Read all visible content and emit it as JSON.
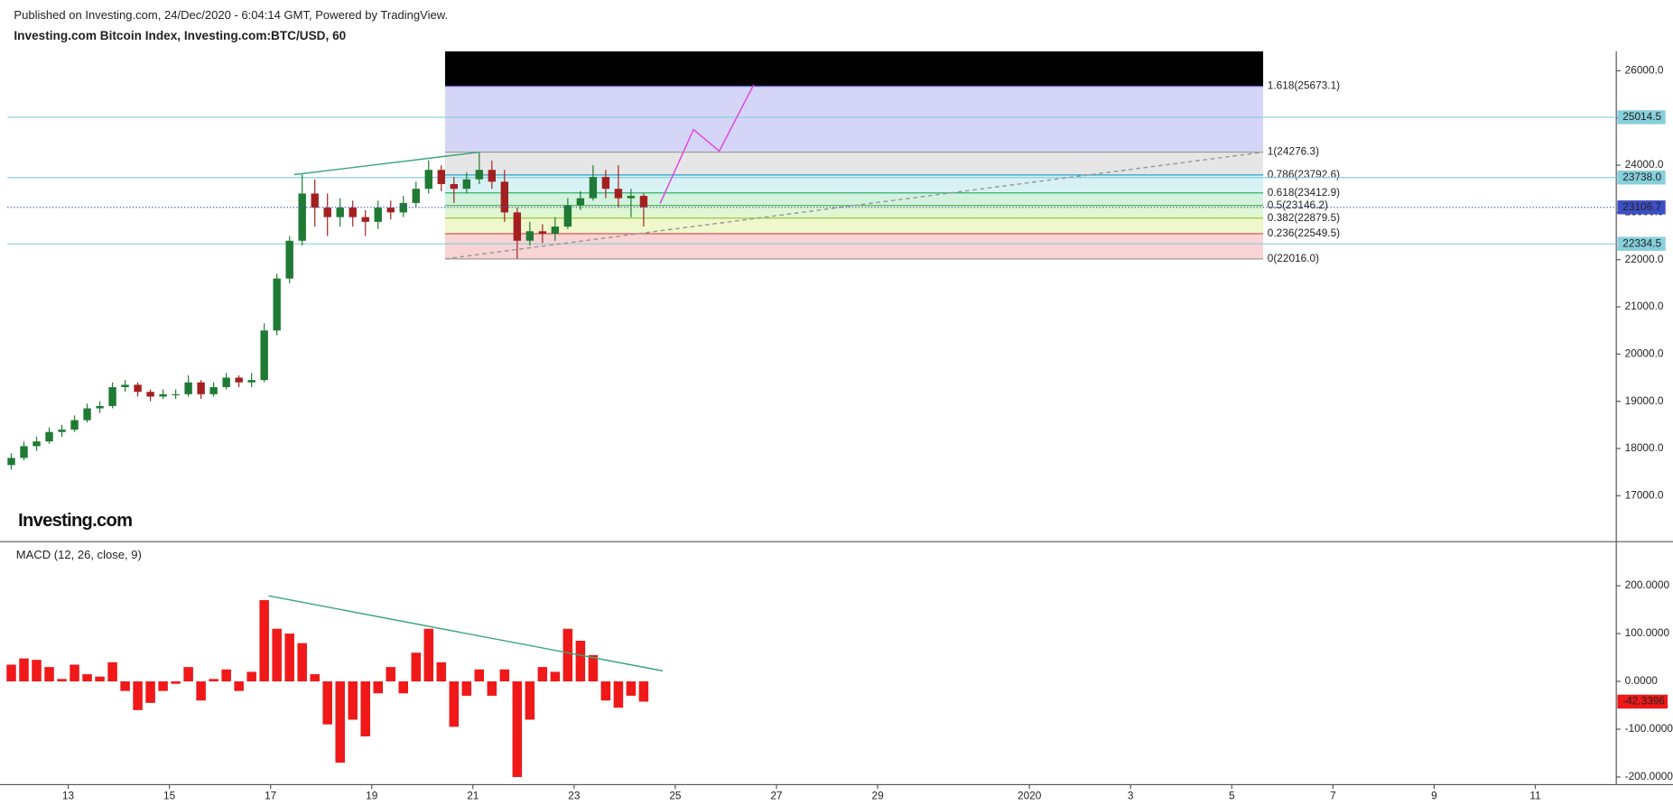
{
  "header": {
    "published": "Published on Investing.com, 24/Dec/2020 - 6:04:14 GMT, Powered by TradingView."
  },
  "logo": "Investing.com",
  "chart_data": [
    {
      "type": "candlestick",
      "title": "Investing.com Bitcoin Index, Investing.com:BTC/USD, 60",
      "x": [
        11.875,
        12.125,
        12.375,
        12.625,
        12.875,
        13.125,
        13.375,
        13.625,
        13.875,
        14.125,
        14.375,
        14.625,
        14.875,
        15.125,
        15.375,
        15.625,
        15.875,
        16.125,
        16.375,
        16.625,
        16.875,
        17.125,
        17.375,
        17.625,
        17.875,
        18.125,
        18.375,
        18.625,
        18.875,
        19.125,
        19.375,
        19.625,
        19.875,
        20.125,
        20.375,
        20.625,
        20.875,
        21.125,
        21.375,
        21.625,
        21.875,
        22.125,
        22.375,
        22.625,
        22.875,
        23.125,
        23.375,
        23.625,
        23.875,
        24.125,
        24.375
      ],
      "open": [
        17650,
        17800,
        18050,
        18150,
        18350,
        18400,
        18600,
        18850,
        18900,
        19300,
        19350,
        19200,
        19100,
        19150,
        19150,
        19400,
        19150,
        19300,
        19500,
        19400,
        19450,
        20500,
        21600,
        22400,
        23400,
        23100,
        22900,
        23100,
        22900,
        22800,
        23100,
        23000,
        23200,
        23500,
        23900,
        23600,
        23500,
        23700,
        23900,
        23650,
        23000,
        22400,
        22600,
        22550,
        22700,
        23150,
        23300,
        23750,
        23500,
        23300,
        23350
      ],
      "high": [
        17900,
        18150,
        18250,
        18450,
        18500,
        18700,
        18950,
        19000,
        19400,
        19450,
        19400,
        19250,
        19250,
        19250,
        19550,
        19450,
        19400,
        19600,
        19550,
        19600,
        20650,
        21700,
        22500,
        23800,
        23700,
        23400,
        23300,
        23250,
        23050,
        23250,
        23250,
        23350,
        23650,
        24100,
        24000,
        23750,
        23850,
        24276.3,
        24100,
        23900,
        23100,
        22800,
        22750,
        22900,
        23300,
        23450,
        24000,
        23900,
        24000,
        23500,
        23400
      ],
      "low": [
        17550,
        17750,
        17950,
        18100,
        18250,
        18350,
        18550,
        18750,
        18850,
        19200,
        19100,
        19000,
        19050,
        19050,
        19100,
        19050,
        19100,
        19250,
        19300,
        19300,
        19400,
        20400,
        21500,
        22300,
        22700,
        22500,
        22700,
        22700,
        22500,
        22650,
        22850,
        22900,
        23100,
        23400,
        23450,
        23200,
        23400,
        23600,
        23500,
        22800,
        22016,
        22300,
        22350,
        22400,
        22650,
        23050,
        23250,
        23300,
        23100,
        22900,
        22700
      ],
      "close": [
        17800,
        18050,
        18150,
        18350,
        18400,
        18600,
        18850,
        18900,
        19300,
        19350,
        19200,
        19100,
        19150,
        19150,
        19400,
        19150,
        19300,
        19500,
        19400,
        19450,
        20500,
        21600,
        22400,
        23400,
        23100,
        22900,
        23100,
        22900,
        22800,
        23100,
        23000,
        23200,
        23500,
        23900,
        23600,
        23500,
        23700,
        23900,
        23650,
        23000,
        22400,
        22600,
        22550,
        22700,
        23150,
        23300,
        23750,
        23500,
        23300,
        23350,
        23106.7
      ],
      "up_color": "#1f7a34",
      "down_color": "#a32020",
      "last_price_color": "#3d4fc4",
      "xlim": [
        11.8,
        43.6
      ],
      "ylim": [
        16050,
        26410
      ],
      "yticks": [
        {
          "value": 17000,
          "label": "17000.0"
        },
        {
          "value": 18000,
          "label": "18000.0"
        },
        {
          "value": 19000,
          "label": "19000.0"
        },
        {
          "value": 20000,
          "label": "20000.0"
        },
        {
          "value": 21000,
          "label": "21000.0"
        },
        {
          "value": 22000,
          "label": "22000.0"
        },
        {
          "value": 23000,
          "label": "23000.0"
        },
        {
          "value": 24000,
          "label": "24000.0"
        },
        {
          "value": 25000,
          "label": "25000.0"
        },
        {
          "value": 26000,
          "label": "26000.0"
        }
      ],
      "hlines": {
        "values": [
          25014.5,
          23738.0,
          22334.5
        ],
        "value_labels": [
          "25014.5",
          "23738.0",
          "22334.5"
        ],
        "color": "#86cfdb"
      },
      "fib": {
        "x_range": [
          20.45,
          36.62
        ],
        "values": [
          22016.0,
          22549.5,
          22879.5,
          23146.2,
          23412.9,
          23792.6,
          24276.3,
          25673.1
        ],
        "value_labels": [
          "0(22016.0)",
          "0.236(22549.5)",
          "0.382(22879.5)",
          "0.5(23146.2)",
          "0.618(23412.9)",
          "0.786(23792.6)",
          "1(24276.3)",
          "1.618(25673.1)"
        ],
        "colors": [
          "#9a9a9a",
          "#d8454a",
          "#9cbf3a",
          "#49ad4f",
          "#2fb06b",
          "#2a9ec2",
          "#9a9a9a",
          "#5656d0"
        ],
        "band_colors": [
          "rgba(240,160,160,0.45)",
          "rgba(228,242,170,0.6)",
          "rgba(200,240,180,0.6)",
          "rgba(175,232,195,0.55)",
          "rgba(190,232,238,0.6)",
          "rgba(214,214,214,0.6)",
          "rgba(172,172,240,0.5)",
          "rgba(240,160,160,0.45)"
        ]
      },
      "drawings": [
        {
          "x": [
            17.47,
            21.13
          ],
          "y": [
            23800,
            24277
          ],
          "color": "#3aa57a",
          "dash": false
        },
        {
          "x": [
            20.45,
            36.62
          ],
          "y": [
            22016,
            24276
          ],
          "color": "#999999",
          "dash": true
        },
        {
          "x": [
            24.7,
            25.36,
            25.87,
            26.55
          ],
          "y": [
            23188,
            24753,
            24299,
            25705
          ],
          "color": "#e040e0",
          "dash": false
        }
      ]
    },
    {
      "type": "bar",
      "title": "MACD (12, 26, close, 9)",
      "x": [
        11.875,
        12.125,
        12.375,
        12.625,
        12.875,
        13.125,
        13.375,
        13.625,
        13.875,
        14.125,
        14.375,
        14.625,
        14.875,
        15.125,
        15.375,
        15.625,
        15.875,
        16.125,
        16.375,
        16.625,
        16.875,
        17.125,
        17.375,
        17.625,
        17.875,
        18.125,
        18.375,
        18.625,
        18.875,
        19.125,
        19.375,
        19.625,
        19.875,
        20.125,
        20.375,
        20.625,
        20.875,
        21.125,
        21.375,
        21.625,
        21.875,
        22.125,
        22.375,
        22.625,
        22.875,
        23.125,
        23.375,
        23.625,
        23.875,
        24.125,
        24.375
      ],
      "values": [
        35,
        48,
        45,
        30,
        5,
        35,
        15,
        10,
        40,
        -20,
        -60,
        -45,
        -20,
        -5,
        30,
        -40,
        5,
        25,
        -20,
        20,
        170,
        110,
        100,
        80,
        15,
        -90,
        -170,
        -80,
        -115,
        -25,
        30,
        -25,
        60,
        110,
        40,
        -95,
        -30,
        25,
        -30,
        25,
        -200,
        -80,
        30,
        20,
        110,
        85,
        55,
        -40,
        -55,
        -30,
        -42.3396
      ],
      "color": "#f01818",
      "xlim": [
        11.8,
        43.6
      ],
      "xticks": [
        13,
        15,
        17,
        19,
        21,
        23,
        25,
        27,
        29,
        {
          "value": 32,
          "label": "2020"
        },
        {
          "value": 34,
          "label": "3"
        },
        {
          "value": 36,
          "label": "5"
        },
        {
          "value": 38,
          "label": "7"
        },
        {
          "value": 40,
          "label": "9"
        },
        {
          "value": 42,
          "label": "11"
        }
      ],
      "ylim": [
        -216,
        290
      ],
      "yticks": [
        {
          "value": -200,
          "label": "-200.0000"
        },
        {
          "value": -100,
          "label": "-100.0000"
        },
        {
          "value": 0,
          "label": "0.0000"
        },
        {
          "value": 100,
          "label": "100.0000"
        },
        {
          "value": 200,
          "label": "200.0000"
        }
      ],
      "drawings": [
        {
          "x": [
            16.96,
            24.75
          ],
          "y": [
            179,
            22
          ],
          "color": "#3aa57a",
          "dash": false
        }
      ]
    }
  ]
}
